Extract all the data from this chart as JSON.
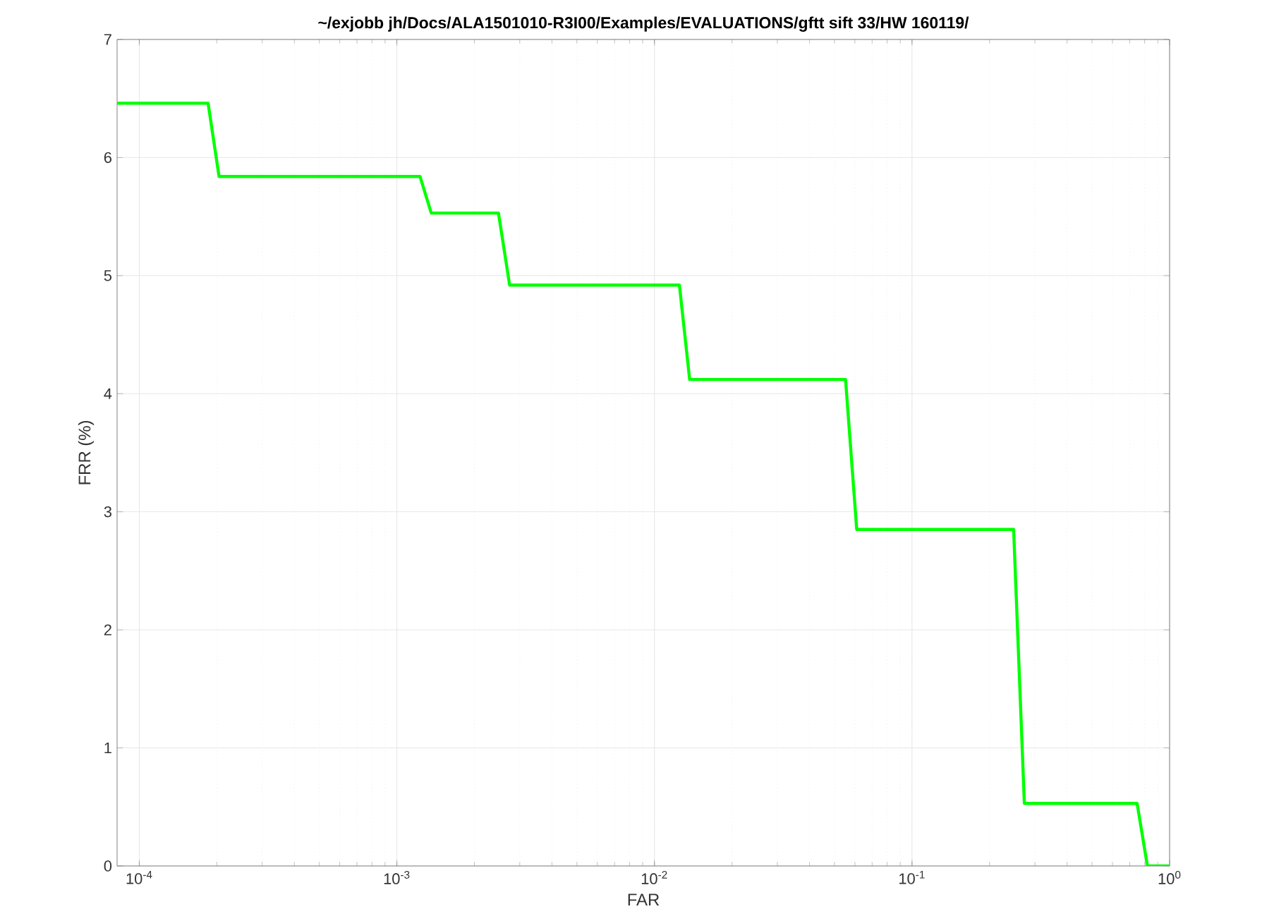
{
  "chart_data": {
    "type": "line",
    "title": "~/exjobb jh/Docs/ALA1501010-R3I00/Examples/EVALUATIONS/gftt sift 33/HW 160119/",
    "xlabel": "FAR",
    "ylabel": "FRR (%)",
    "log": "x",
    "grid": true,
    "xlim": [
      8.2e-05,
      1
    ],
    "ylim": [
      0,
      7
    ],
    "xticks": [
      {
        "value": 0.0001,
        "label": "10$^{-4}$"
      },
      {
        "value": 0.001,
        "label": "10$^{-3}$"
      },
      {
        "value": 0.01,
        "label": "10$^{-2}$"
      },
      {
        "value": 0.1,
        "label": "10$^{-1}$"
      },
      {
        "value": 1,
        "label": "10$^{0}$"
      }
    ],
    "yticks": [
      0,
      1,
      2,
      3,
      4,
      5,
      6,
      7
    ],
    "series": [
      {
        "color": "#00ff00",
        "line_style": "solid",
        "x": [
          8.2e-05,
          0.000185,
          0.000204,
          0.00123,
          0.00136,
          0.00248,
          0.00274,
          0.0125,
          0.0137,
          0.0552,
          0.061,
          0.248,
          0.273,
          0.748,
          0.82,
          1
        ],
        "values": [
          6.46,
          6.46,
          5.84,
          5.84,
          5.53,
          5.53,
          4.92,
          4.92,
          4.12,
          4.12,
          2.85,
          2.85,
          0.53,
          0.53,
          0,
          0
        ]
      }
    ]
  }
}
